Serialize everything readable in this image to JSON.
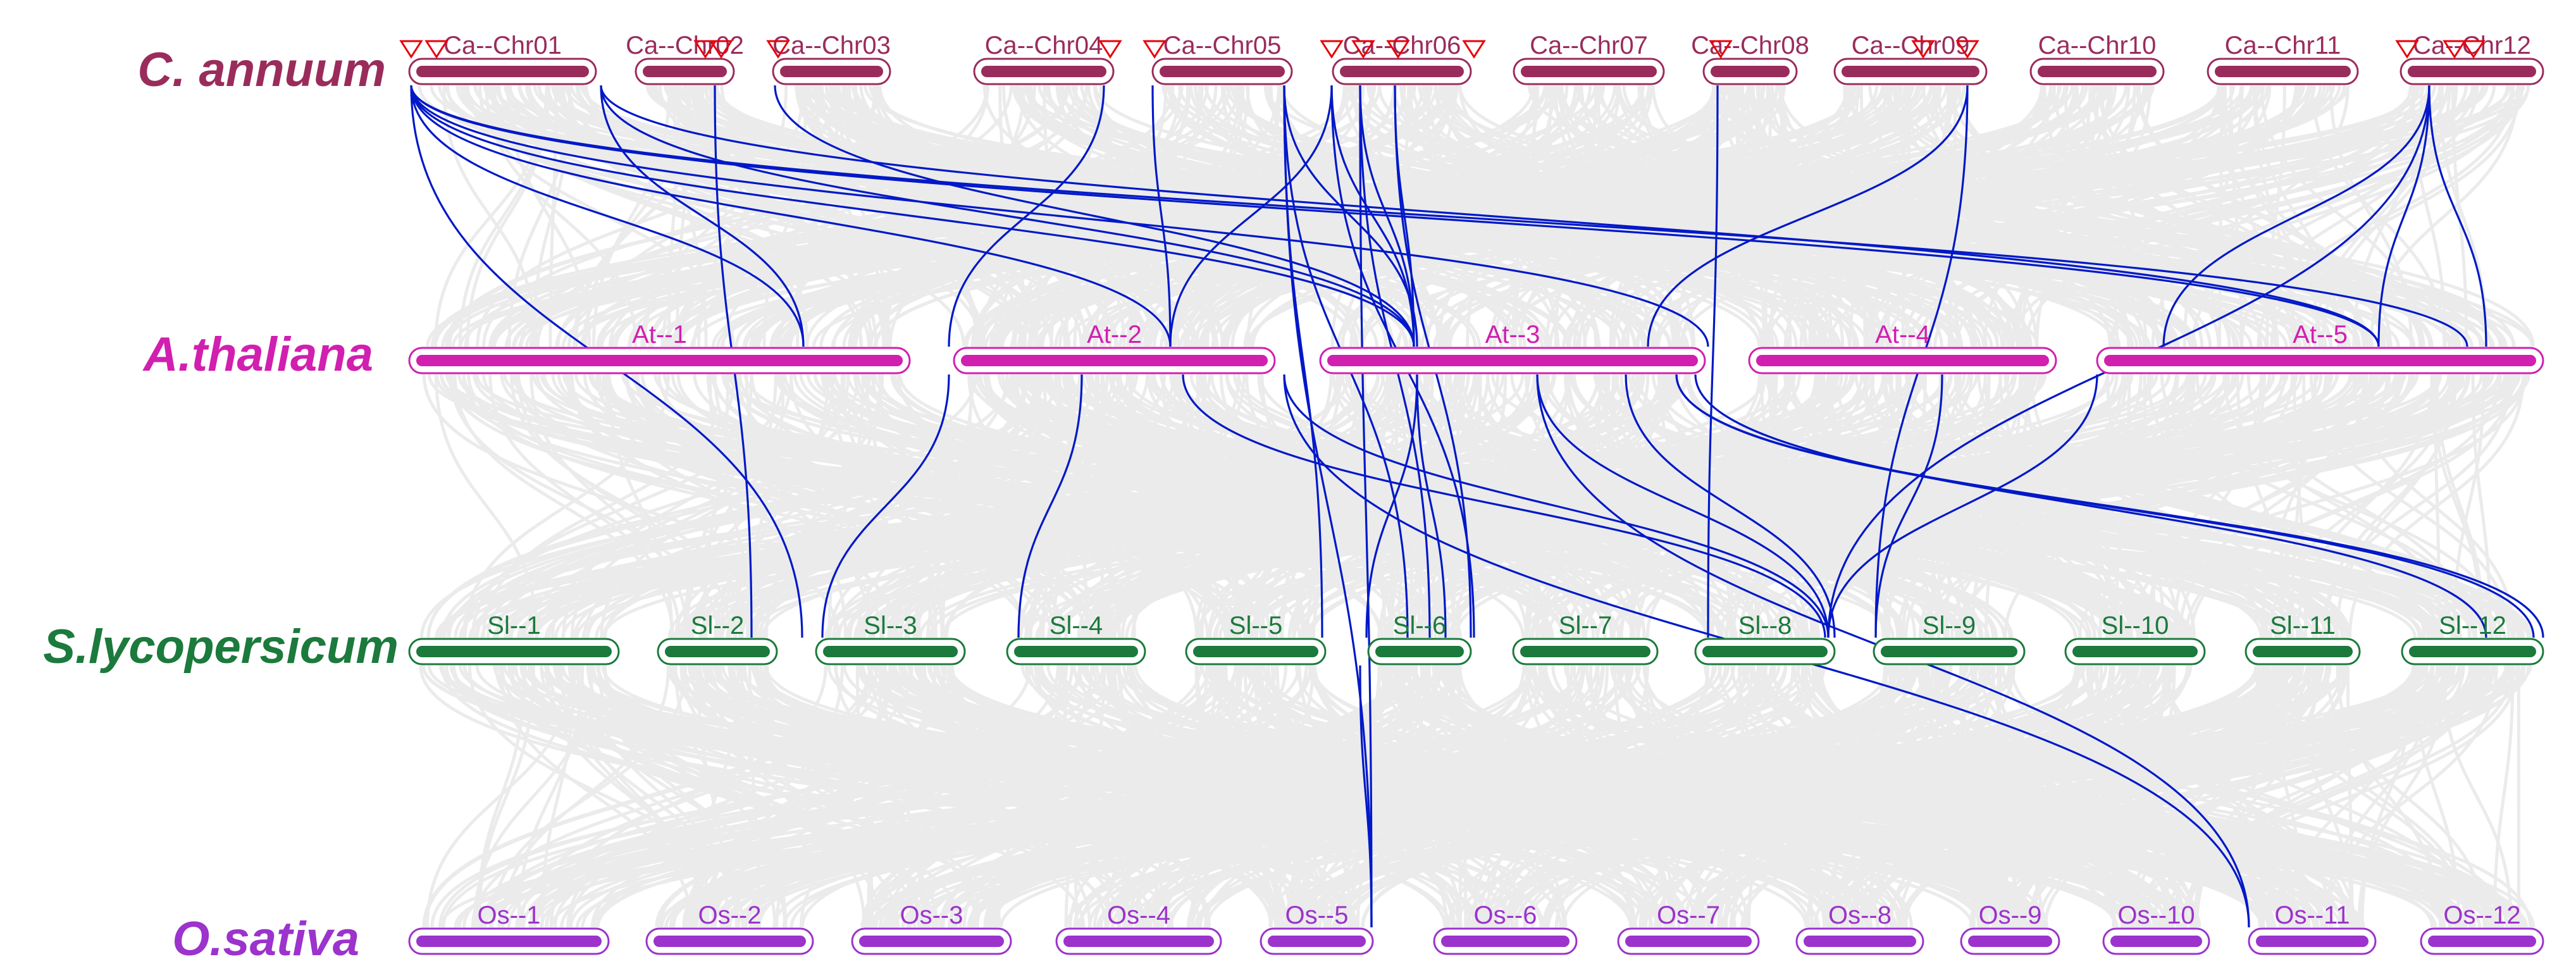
{
  "colors": {
    "background_link": "#ebebeb",
    "highlight_link": "#0018c8",
    "marker": "#e8000b"
  },
  "tracks": [
    {
      "species": "C. annuum",
      "color": "#9a2c5c",
      "chromosomes": [
        "Ca--Chr01",
        "Ca--Chr02",
        "Ca--Chr03",
        "Ca--Chr04",
        "Ca--Chr05",
        "Ca--Chr06",
        "Ca--Chr07",
        "Ca--Chr08",
        "Ca--Chr09",
        "Ca--Chr10",
        "Ca--Chr11",
        "Ca--Chr12"
      ]
    },
    {
      "species": "A.thaliana",
      "color": "#d11fb0",
      "chromosomes": [
        "At--1",
        "At--2",
        "At--3",
        "At--4",
        "At--5"
      ]
    },
    {
      "species": "S.lycopersicum",
      "color": "#1b7a3c",
      "chromosomes": [
        "Sl--1",
        "Sl--2",
        "Sl--3",
        "Sl--4",
        "Sl--5",
        "Sl--6",
        "Sl--7",
        "Sl--8",
        "Sl--9",
        "Sl--10",
        "Sl--11",
        "Sl--12"
      ]
    },
    {
      "species": "O.sativa",
      "color": "#9b33cc",
      "chromosomes": [
        "Os--1",
        "Os--2",
        "Os--3",
        "Os--4",
        "Os--5",
        "Os--6",
        "Os--7",
        "Os--8",
        "Os--9",
        "Os--10",
        "Os--11",
        "Os--12"
      ]
    }
  ]
}
